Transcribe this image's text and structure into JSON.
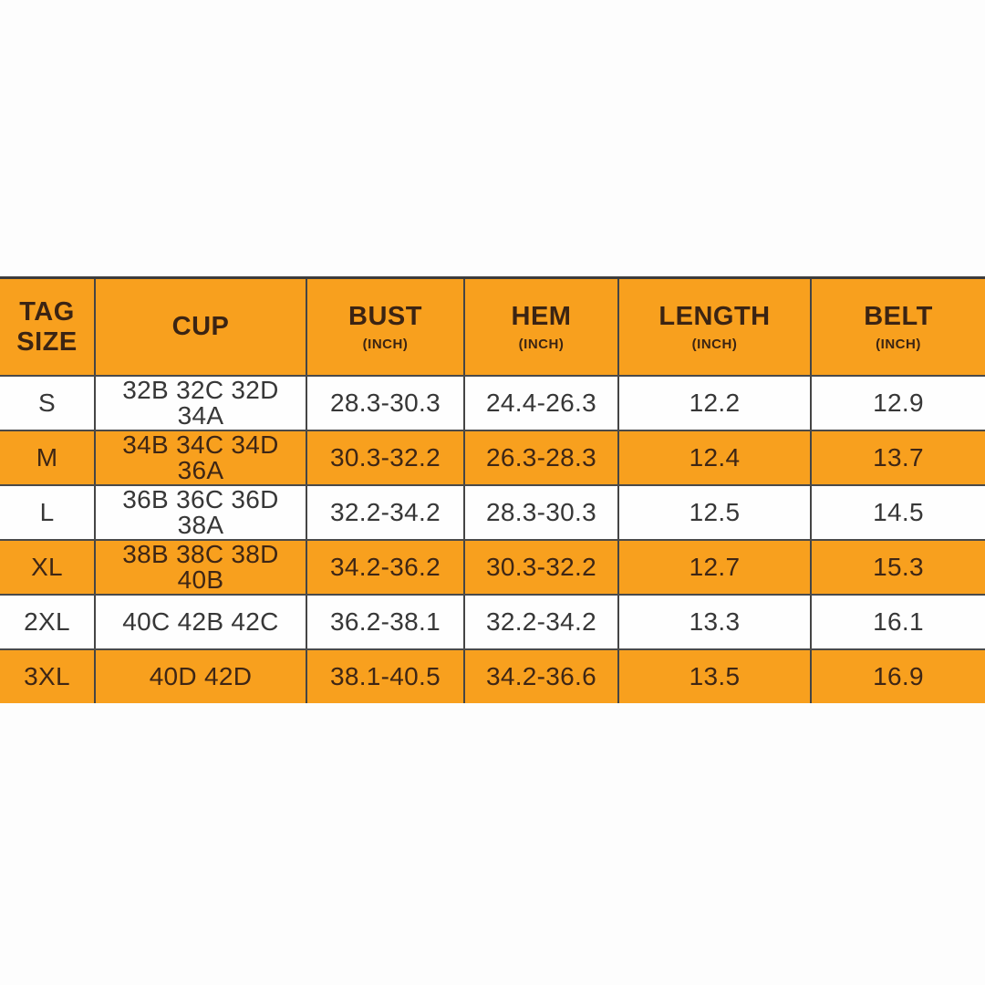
{
  "colors": {
    "orange": "#F8A01E",
    "header_text": "#3b2413",
    "row_text_dark": "#373737",
    "row_text_orange_bg": "#3e2615"
  },
  "table": {
    "columns": [
      {
        "key": "tag",
        "label": "TAG SIZE",
        "sub": ""
      },
      {
        "key": "cup",
        "label": "CUP",
        "sub": ""
      },
      {
        "key": "bust",
        "label": "BUST",
        "sub": "(INCH)"
      },
      {
        "key": "hem",
        "label": "HEM",
        "sub": "(INCH)"
      },
      {
        "key": "length",
        "label": "LENGTH",
        "sub": "(INCH)"
      },
      {
        "key": "belt",
        "label": "BELT",
        "sub": "(INCH)"
      }
    ],
    "rows": [
      [
        "S",
        "32B 32C 32D 34A",
        "28.3-30.3",
        "24.4-26.3",
        "12.2",
        "12.9"
      ],
      [
        "M",
        "34B 34C 34D 36A",
        "30.3-32.2",
        "26.3-28.3",
        "12.4",
        "13.7"
      ],
      [
        "L",
        "36B 36C 36D 38A",
        "32.2-34.2",
        "28.3-30.3",
        "12.5",
        "14.5"
      ],
      [
        "XL",
        "38B 38C 38D 40B",
        "34.2-36.2",
        "30.3-32.2",
        "12.7",
        "15.3"
      ],
      [
        "2XL",
        "40C 42B 42C",
        "36.2-38.1",
        "32.2-34.2",
        "13.3",
        "16.1"
      ],
      [
        "3XL",
        "40D 42D",
        "38.1-40.5",
        "34.2-36.6",
        "13.5",
        "16.9"
      ]
    ]
  },
  "chart_data": {
    "type": "table",
    "title": "",
    "columns": [
      "TAG SIZE",
      "CUP",
      "BUST (INCH)",
      "HEM (INCH)",
      "LENGTH (INCH)",
      "BELT (INCH)"
    ],
    "rows": [
      [
        "S",
        "32B 32C 32D 34A",
        "28.3-30.3",
        "24.4-26.3",
        "12.2",
        "12.9"
      ],
      [
        "M",
        "34B 34C 34D 36A",
        "30.3-32.2",
        "26.3-28.3",
        "12.4",
        "13.7"
      ],
      [
        "L",
        "36B 36C 36D 38A",
        "32.2-34.2",
        "28.3-30.3",
        "12.5",
        "14.5"
      ],
      [
        "XL",
        "38B 38C 38D 40B",
        "34.2-36.2",
        "30.3-32.2",
        "12.7",
        "15.3"
      ],
      [
        "2XL",
        "40C 42B 42C",
        "36.2-38.1",
        "32.2-34.2",
        "13.3",
        "16.1"
      ],
      [
        "3XL",
        "40D 42D",
        "38.1-40.5",
        "34.2-36.6",
        "13.5",
        "16.9"
      ]
    ]
  }
}
